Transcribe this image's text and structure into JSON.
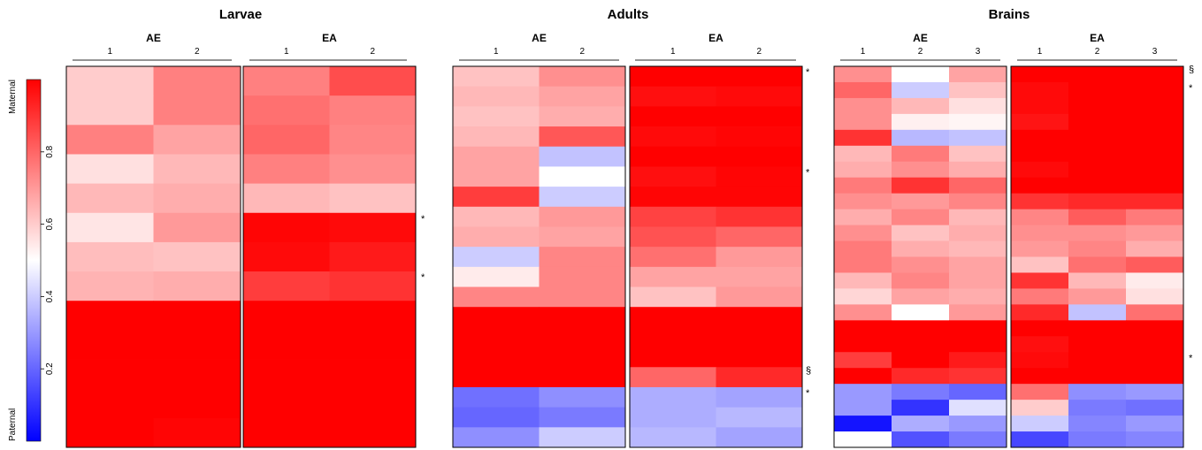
{
  "chart_data": {
    "type": "heatmap",
    "colorbar": {
      "top_label": "Maternal",
      "bottom_label": "Paternal",
      "range": [
        0,
        1
      ],
      "ticks": [
        0.2,
        0.4,
        0.6,
        0.8
      ],
      "tick_labels": [
        "0.2",
        "0.4",
        "0.6",
        "0.8"
      ],
      "low_color": "#0000ff",
      "mid_color": "#ffffff",
      "high_color": "#ff0000"
    },
    "panels": [
      {
        "title": "Larvae",
        "groups": [
          {
            "label": "AE",
            "columns": [
              "1",
              "2"
            ]
          },
          {
            "label": "EA",
            "columns": [
              "1",
              "2"
            ]
          }
        ],
        "values": [
          [
            0.6,
            0.75,
            0.75,
            0.85
          ],
          [
            0.6,
            0.75,
            0.78,
            0.75
          ],
          [
            0.75,
            0.68,
            0.8,
            0.74
          ],
          [
            0.56,
            0.64,
            0.75,
            0.72
          ],
          [
            0.64,
            0.66,
            0.64,
            0.62
          ],
          [
            0.55,
            0.7,
            0.99,
            0.98
          ],
          [
            0.63,
            0.62,
            0.98,
            0.95
          ],
          [
            0.65,
            0.66,
            0.88,
            0.9
          ],
          [
            1.0,
            1.0,
            1.0,
            1.0
          ],
          [
            1.0,
            1.0,
            1.0,
            1.0
          ],
          [
            1.0,
            1.0,
            1.0,
            1.0
          ],
          [
            1.0,
            1.0,
            1.0,
            1.0
          ],
          [
            1.0,
            0.99,
            1.0,
            1.0
          ]
        ],
        "marks": [
          {
            "row": 5,
            "symbol": "*"
          },
          {
            "row": 7,
            "symbol": "*"
          }
        ]
      },
      {
        "title": "Adults",
        "groups": [
          {
            "label": "AE",
            "columns": [
              "1",
              "2"
            ]
          },
          {
            "label": "EA",
            "columns": [
              "1",
              "2"
            ]
          }
        ],
        "values": [
          [
            0.62,
            0.72,
            1.0,
            1.0
          ],
          [
            0.64,
            0.68,
            0.97,
            0.98
          ],
          [
            0.62,
            0.66,
            1.0,
            1.0
          ],
          [
            0.64,
            0.83,
            0.98,
            0.99
          ],
          [
            0.68,
            0.38,
            1.0,
            1.0
          ],
          [
            0.68,
            0.5,
            0.97,
            0.99
          ],
          [
            0.88,
            0.4,
            0.99,
            0.99
          ],
          [
            0.64,
            0.7,
            0.87,
            0.9
          ],
          [
            0.66,
            0.68,
            0.84,
            0.8
          ],
          [
            0.4,
            0.74,
            0.78,
            0.7
          ],
          [
            0.54,
            0.74,
            0.68,
            0.68
          ],
          [
            0.74,
            0.74,
            0.62,
            0.7
          ],
          [
            1.0,
            1.0,
            1.0,
            1.0
          ],
          [
            1.0,
            1.0,
            1.0,
            1.0
          ],
          [
            1.0,
            1.0,
            1.0,
            1.0
          ],
          [
            1.0,
            1.0,
            0.8,
            0.92
          ],
          [
            0.22,
            0.28,
            0.34,
            0.32
          ],
          [
            0.2,
            0.24,
            0.34,
            0.36
          ],
          [
            0.28,
            0.4,
            0.36,
            0.32
          ]
        ],
        "marks": [
          {
            "row": 0,
            "symbol": "*"
          },
          {
            "row": 5,
            "symbol": "*"
          },
          {
            "row": 15,
            "symbol": "§"
          },
          {
            "row": 16,
            "symbol": "*"
          }
        ]
      },
      {
        "title": "Brains",
        "groups": [
          {
            "label": "AE",
            "columns": [
              "1",
              "2",
              "3"
            ]
          },
          {
            "label": "EA",
            "columns": [
              "1",
              "2",
              "3"
            ]
          }
        ],
        "values": [
          [
            0.72,
            0.5,
            0.68,
            1.0,
            1.0,
            1.0
          ],
          [
            0.8,
            0.4,
            0.62,
            0.98,
            1.0,
            1.0
          ],
          [
            0.72,
            0.64,
            0.56,
            0.98,
            1.0,
            1.0
          ],
          [
            0.72,
            0.53,
            0.52,
            0.96,
            1.0,
            1.0
          ],
          [
            0.9,
            0.36,
            0.38,
            1.0,
            1.0,
            1.0
          ],
          [
            0.64,
            0.76,
            0.62,
            1.0,
            1.0,
            1.0
          ],
          [
            0.66,
            0.72,
            0.66,
            0.98,
            1.0,
            1.0
          ],
          [
            0.76,
            0.9,
            0.8,
            1.0,
            1.0,
            1.0
          ],
          [
            0.72,
            0.7,
            0.74,
            0.9,
            0.92,
            0.92
          ],
          [
            0.66,
            0.74,
            0.64,
            0.74,
            0.82,
            0.76
          ],
          [
            0.72,
            0.62,
            0.66,
            0.72,
            0.72,
            0.7
          ],
          [
            0.76,
            0.66,
            0.64,
            0.7,
            0.74,
            0.66
          ],
          [
            0.76,
            0.72,
            0.68,
            0.62,
            0.78,
            0.82
          ],
          [
            0.64,
            0.74,
            0.68,
            0.9,
            0.64,
            0.54
          ],
          [
            0.58,
            0.68,
            0.66,
            0.76,
            0.7,
            0.56
          ],
          [
            0.72,
            0.5,
            0.7,
            0.92,
            0.38,
            0.78
          ],
          [
            1.0,
            1.0,
            1.0,
            1.0,
            1.0,
            1.0
          ],
          [
            1.0,
            1.0,
            1.0,
            0.97,
            1.0,
            1.0
          ],
          [
            0.88,
            1.0,
            0.95,
            0.98,
            1.0,
            1.0
          ],
          [
            1.0,
            0.92,
            0.9,
            1.0,
            1.0,
            1.0
          ],
          [
            0.3,
            0.24,
            0.2,
            0.78,
            0.28,
            0.3
          ],
          [
            0.3,
            0.1,
            0.44,
            0.6,
            0.24,
            0.22
          ],
          [
            0.04,
            0.34,
            0.3,
            0.4,
            0.26,
            0.3
          ],
          [
            0.5,
            0.16,
            0.24,
            0.14,
            0.24,
            0.26
          ]
        ],
        "marks": [
          {
            "row": 0,
            "symbol": "§"
          },
          {
            "row": 1,
            "symbol": "*"
          },
          {
            "row": 18,
            "symbol": "*"
          }
        ]
      }
    ]
  }
}
